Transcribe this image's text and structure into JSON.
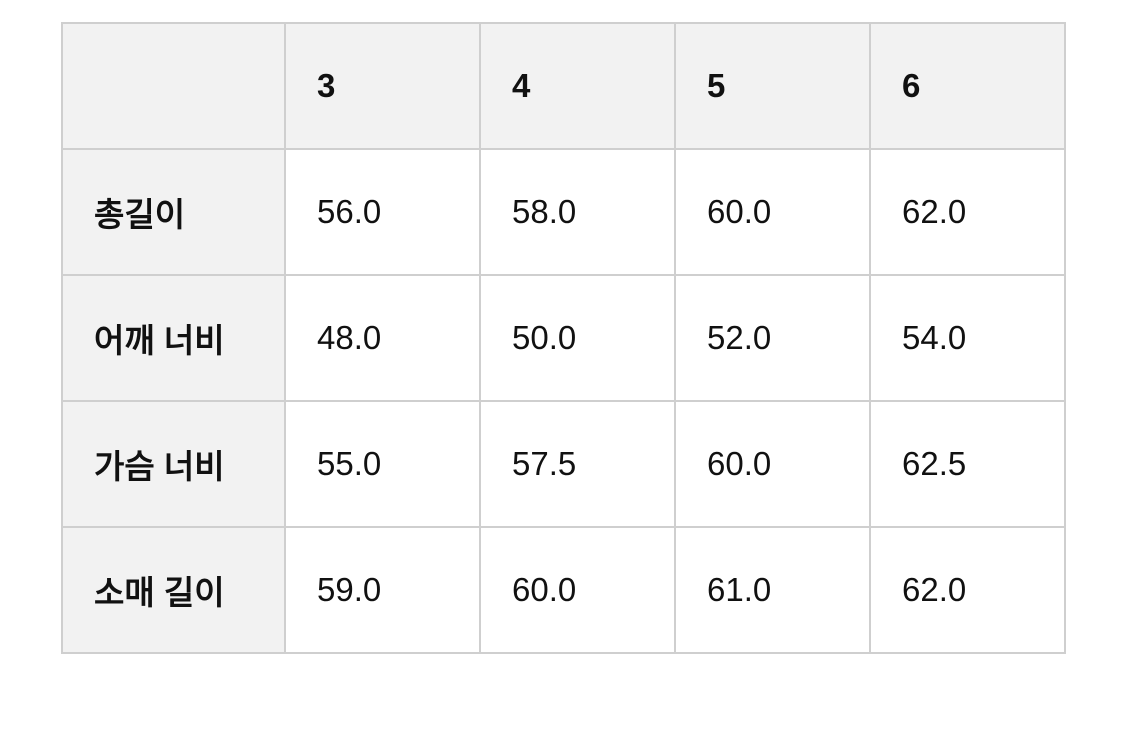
{
  "table": {
    "header": [
      "",
      "3",
      "4",
      "5",
      "6"
    ],
    "rows": [
      {
        "label": "총길이",
        "values": [
          "56.0",
          "58.0",
          "60.0",
          "62.0"
        ]
      },
      {
        "label": "어깨 너비",
        "values": [
          "48.0",
          "50.0",
          "52.0",
          "54.0"
        ]
      },
      {
        "label": "가슴 너비",
        "values": [
          "55.0",
          "57.5",
          "60.0",
          "62.5"
        ]
      },
      {
        "label": "소매 길이",
        "values": [
          "59.0",
          "60.0",
          "61.0",
          "62.0"
        ]
      }
    ]
  },
  "colors": {
    "header_bg": "#f2f2f2",
    "border": "#cfcfcf"
  }
}
